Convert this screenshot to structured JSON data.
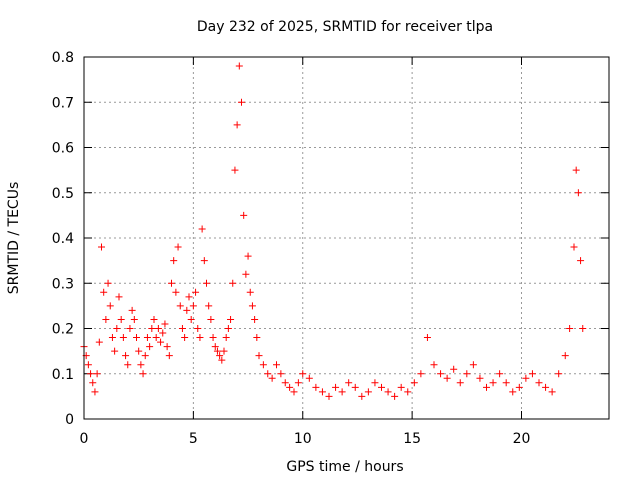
{
  "chart_data": {
    "type": "scatter",
    "title": "Day 232 of 2025, SRMTID for receiver tlpa",
    "xlabel": "GPS time / hours",
    "ylabel": "SRMTID / TECUs",
    "xlim": [
      0,
      24
    ],
    "ylim": [
      0,
      0.8
    ],
    "xticks": [
      0,
      5,
      10,
      15,
      20
    ],
    "xtick_labels": [
      "0",
      "5",
      "10",
      "15",
      "20"
    ],
    "yticks": [
      0,
      0.1,
      0.2,
      0.3,
      0.4,
      0.5,
      0.6,
      0.7,
      0.8
    ],
    "ytick_labels": [
      "0",
      "0.1",
      "0.2",
      "0.3",
      "0.4",
      "0.5",
      "0.6",
      "0.7",
      "0.8"
    ],
    "grid": true,
    "marker": "+",
    "series": [
      {
        "name": "SRMTID",
        "color": "#ff0000",
        "x": [
          0.0,
          0.1,
          0.2,
          0.3,
          0.4,
          0.5,
          0.6,
          0.7,
          0.8,
          0.9,
          1.0,
          1.1,
          1.2,
          1.3,
          1.4,
          1.5,
          1.6,
          1.7,
          1.8,
          1.9,
          2.0,
          2.1,
          2.2,
          2.3,
          2.4,
          2.5,
          2.6,
          2.7,
          2.8,
          2.9,
          3.0,
          3.1,
          3.2,
          3.3,
          3.4,
          3.5,
          3.6,
          3.7,
          3.8,
          3.9,
          4.0,
          4.1,
          4.2,
          4.3,
          4.4,
          4.5,
          4.6,
          4.7,
          4.8,
          4.9,
          5.0,
          5.1,
          5.2,
          5.3,
          5.4,
          5.5,
          5.6,
          5.7,
          5.8,
          5.9,
          6.0,
          6.1,
          6.2,
          6.3,
          6.4,
          6.5,
          6.6,
          6.7,
          6.8,
          6.9,
          7.0,
          7.1,
          7.2,
          7.3,
          7.4,
          7.5,
          7.6,
          7.7,
          7.8,
          7.9,
          8.0,
          8.2,
          8.4,
          8.6,
          8.8,
          9.0,
          9.2,
          9.4,
          9.6,
          9.8,
          10.0,
          10.3,
          10.6,
          10.9,
          11.2,
          11.5,
          11.8,
          12.1,
          12.4,
          12.7,
          13.0,
          13.3,
          13.6,
          13.9,
          14.2,
          14.5,
          14.8,
          15.1,
          15.4,
          15.7,
          16.0,
          16.3,
          16.6,
          16.9,
          17.2,
          17.5,
          17.8,
          18.1,
          18.4,
          18.7,
          19.0,
          19.3,
          19.6,
          19.9,
          20.2,
          20.5,
          20.8,
          21.1,
          21.4,
          21.7,
          22.0,
          22.2,
          22.4,
          22.5,
          22.6,
          22.7,
          22.8
        ],
        "y": [
          0.16,
          0.14,
          0.12,
          0.1,
          0.08,
          0.06,
          0.1,
          0.17,
          0.38,
          0.28,
          0.22,
          0.3,
          0.25,
          0.18,
          0.15,
          0.2,
          0.27,
          0.22,
          0.18,
          0.14,
          0.12,
          0.2,
          0.24,
          0.22,
          0.18,
          0.15,
          0.12,
          0.1,
          0.14,
          0.18,
          0.16,
          0.2,
          0.22,
          0.18,
          0.2,
          0.17,
          0.19,
          0.21,
          0.16,
          0.14,
          0.3,
          0.35,
          0.28,
          0.38,
          0.25,
          0.2,
          0.18,
          0.24,
          0.27,
          0.22,
          0.25,
          0.28,
          0.2,
          0.18,
          0.42,
          0.35,
          0.3,
          0.25,
          0.22,
          0.18,
          0.16,
          0.15,
          0.14,
          0.13,
          0.15,
          0.18,
          0.2,
          0.22,
          0.3,
          0.55,
          0.65,
          0.78,
          0.7,
          0.45,
          0.32,
          0.36,
          0.28,
          0.25,
          0.22,
          0.18,
          0.14,
          0.12,
          0.1,
          0.09,
          0.12,
          0.1,
          0.08,
          0.07,
          0.06,
          0.08,
          0.1,
          0.09,
          0.07,
          0.06,
          0.05,
          0.07,
          0.06,
          0.08,
          0.07,
          0.05,
          0.06,
          0.08,
          0.07,
          0.06,
          0.05,
          0.07,
          0.06,
          0.08,
          0.1,
          0.18,
          0.12,
          0.1,
          0.09,
          0.11,
          0.08,
          0.1,
          0.12,
          0.09,
          0.07,
          0.08,
          0.1,
          0.08,
          0.06,
          0.07,
          0.09,
          0.1,
          0.08,
          0.07,
          0.06,
          0.1,
          0.14,
          0.2,
          0.38,
          0.55,
          0.5,
          0.35,
          0.2
        ]
      }
    ]
  }
}
